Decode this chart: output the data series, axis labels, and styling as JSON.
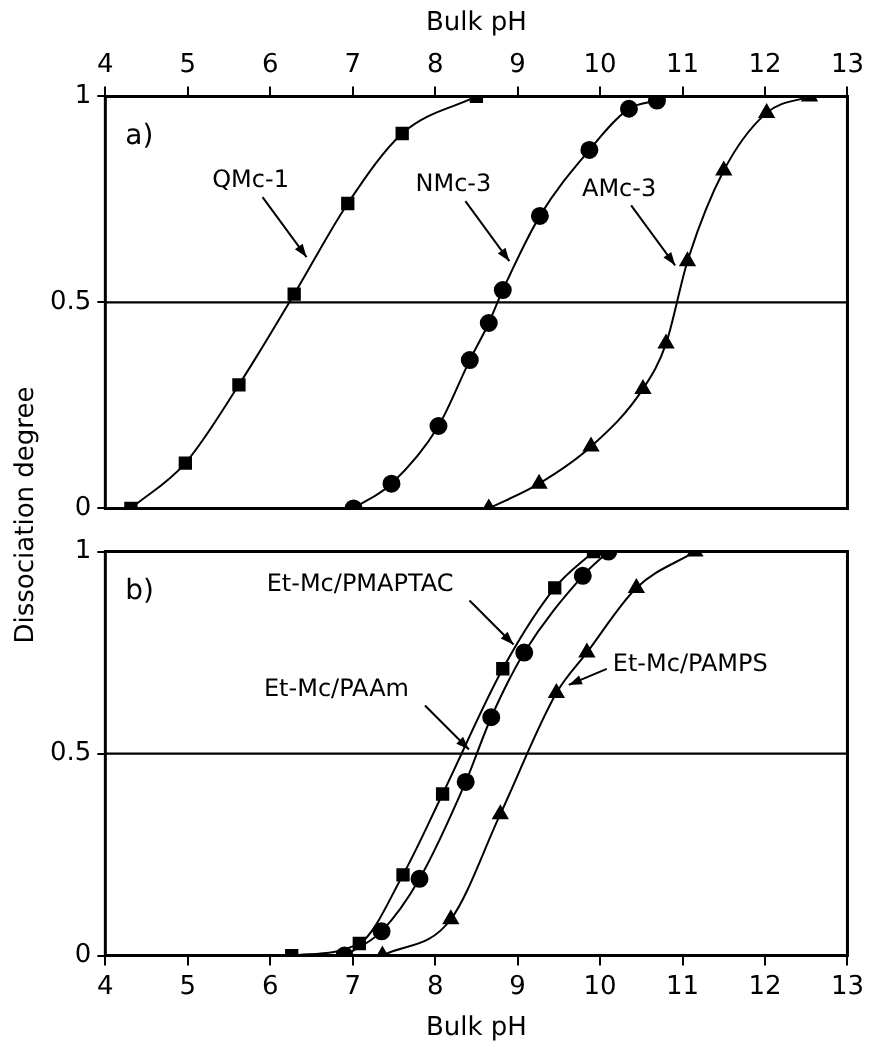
{
  "chart_data": [
    {
      "type": "line",
      "xlabel": "Bulk pH",
      "ylabel": "Dissociation degree",
      "xlim": [
        4,
        13
      ],
      "xticks": [
        4,
        5,
        6,
        7,
        8,
        9,
        10,
        11,
        12,
        13
      ],
      "ylim": [
        0,
        1
      ],
      "yticks": [
        0,
        0.5,
        1
      ],
      "grid": false,
      "legend": false,
      "line_style": "solid",
      "ref_lines": [
        {
          "axis": "y",
          "value": 0.5
        }
      ],
      "annotations": [
        "a)",
        {
          "text": "QMc-1",
          "x": 6.44,
          "y": 0.61
        },
        {
          "text": "NMc-3",
          "x": 8.9,
          "y": 0.6
        },
        {
          "text": "AMc-3",
          "x": 10.91,
          "y": 0.59
        }
      ],
      "series": [
        {
          "color": "#000000",
          "marker": "square",
          "x": [
            4.31,
            4.97,
            5.62,
            6.29,
            6.94,
            7.6,
            8.5
          ],
          "values": [
            0,
            0.11,
            0.3,
            0.52,
            0.74,
            0.91,
            1
          ]
        },
        {
          "color": "#000000",
          "marker": "circle",
          "x": [
            7.01,
            7.47,
            8.04,
            8.42,
            8.65,
            8.82,
            9.27,
            9.87,
            10.35,
            10.69
          ],
          "values": [
            0,
            0.06,
            0.2,
            0.36,
            0.45,
            0.53,
            0.71,
            0.87,
            0.97,
            0.99
          ]
        },
        {
          "color": "#000000",
          "marker": "triangle",
          "x": [
            8.65,
            9.26,
            9.89,
            10.52,
            10.8,
            11.06,
            11.5,
            12.02,
            12.54
          ],
          "values": [
            0,
            0.06,
            0.15,
            0.29,
            0.4,
            0.6,
            0.82,
            0.96,
            1
          ]
        }
      ]
    },
    {
      "type": "line",
      "xlabel": "Bulk pH",
      "xlim": [
        4,
        13
      ],
      "xticks": [
        4,
        5,
        6,
        7,
        8,
        9,
        10,
        11,
        12,
        13
      ],
      "ylim": [
        0,
        1
      ],
      "yticks": [
        0,
        0.5,
        1
      ],
      "grid": false,
      "legend": false,
      "line_style": "solid",
      "ref_lines": [
        {
          "axis": "y",
          "value": 0.5
        }
      ],
      "annotations": [
        "b)",
        {
          "text": "Et-Mc/PMAPTAC",
          "x": 8.95,
          "y": 0.77
        },
        {
          "text": "Et-Mc/PAAm",
          "x": 8.41,
          "y": 0.51
        },
        {
          "text": "Et-Mc/PAMPS",
          "x": 9.62,
          "y": 0.67
        }
      ],
      "series": [
        {
          "color": "#000000",
          "marker": "square",
          "x": [
            6.26,
            7.08,
            7.61,
            8.09,
            8.82,
            9.45,
            9.92
          ],
          "values": [
            0,
            0.03,
            0.2,
            0.4,
            0.71,
            0.91,
            1
          ]
        },
        {
          "color": "#000000",
          "marker": "circle",
          "x": [
            6.9,
            7.35,
            7.81,
            8.37,
            8.68,
            9.08,
            9.79,
            10.1
          ],
          "values": [
            0,
            0.06,
            0.19,
            0.43,
            0.59,
            0.75,
            0.94,
            1
          ]
        },
        {
          "color": "#000000",
          "marker": "triangle",
          "x": [
            7.36,
            8.19,
            8.79,
            9.47,
            9.84,
            10.44,
            11.15
          ],
          "values": [
            0,
            0.09,
            0.35,
            0.65,
            0.75,
            0.91,
            1
          ]
        }
      ]
    }
  ]
}
